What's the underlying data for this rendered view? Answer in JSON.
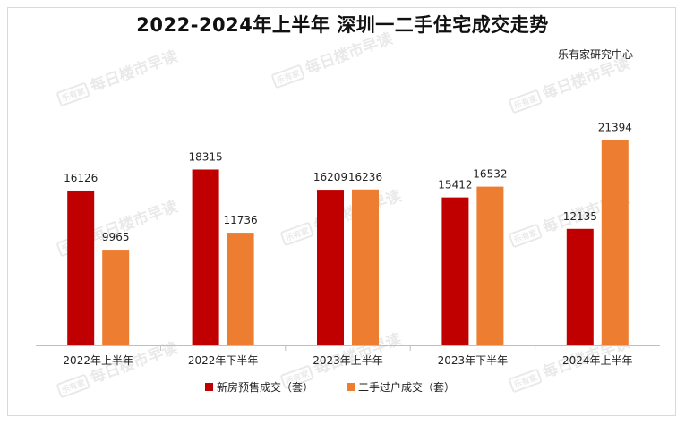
{
  "title": "2022-2024年上半年 深圳一二手住宅成交走势",
  "source": "乐有家研究中心",
  "watermark": {
    "logo": "乐有家",
    "text": "每日楼市早读"
  },
  "colors": {
    "new": "#c00000",
    "second": "#ed7d31",
    "axis": "#bfbfbf"
  },
  "chart_data": {
    "type": "bar",
    "title": "2022-2024年上半年 深圳一二手住宅成交走势",
    "categories": [
      "2022年上半年",
      "2022年下半年",
      "2023年上半年",
      "2023年下半年",
      "2024年上半年"
    ],
    "series": [
      {
        "name": "新房预售成交（套）",
        "values": [
          16126,
          18315,
          16209,
          15412,
          12135
        ]
      },
      {
        "name": "二手过户成交（套）",
        "values": [
          9965,
          11736,
          16236,
          16532,
          21394
        ]
      }
    ],
    "ylim": [
      0,
      25000
    ],
    "grid": false,
    "legend_position": "bottom"
  }
}
